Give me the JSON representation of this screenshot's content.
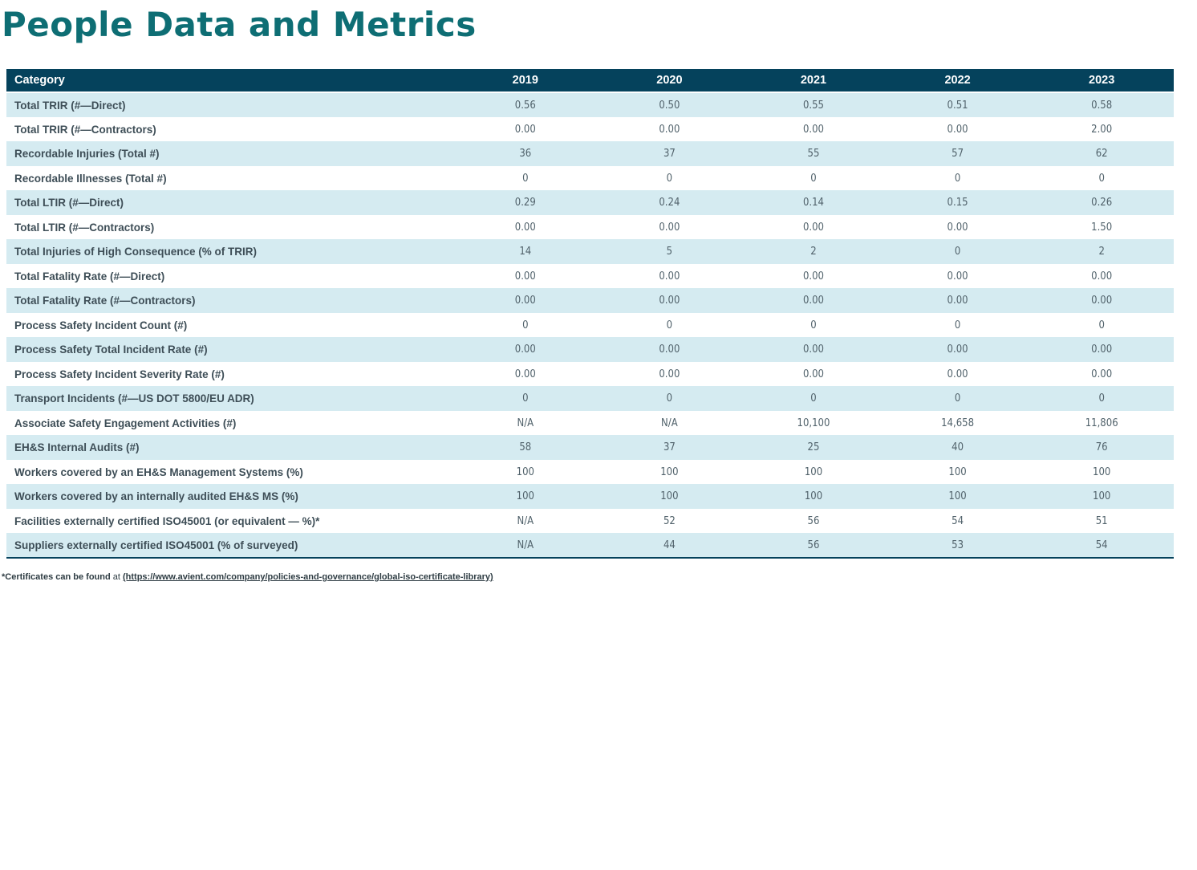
{
  "page": {
    "title": "People Data and Metrics"
  },
  "colors": {
    "header_bg": "#05425C",
    "row_alt_bg": "#D5EBF1",
    "title": "#0E6E74"
  },
  "table": {
    "header": {
      "category": "Category",
      "years": [
        "2019",
        "2020",
        "2021",
        "2022",
        "2023"
      ]
    },
    "rows": [
      {
        "label": "Total TRIR (#—Direct)",
        "values": [
          "0.56",
          "0.50",
          "0.55",
          "0.51",
          "0.58"
        ]
      },
      {
        "label": "Total TRIR (#—Contractors)",
        "values": [
          "0.00",
          "0.00",
          "0.00",
          "0.00",
          "2.00"
        ]
      },
      {
        "label": "Recordable Injuries (Total #)",
        "values": [
          "36",
          "37",
          "55",
          "57",
          "62"
        ]
      },
      {
        "label": "Recordable Illnesses (Total #)",
        "values": [
          "0",
          "0",
          "0",
          "0",
          "0"
        ]
      },
      {
        "label": "Total LTIR (#—Direct)",
        "values": [
          "0.29",
          "0.24",
          "0.14",
          "0.15",
          "0.26"
        ]
      },
      {
        "label": "Total LTIR (#—Contractors)",
        "values": [
          "0.00",
          "0.00",
          "0.00",
          "0.00",
          "1.50"
        ]
      },
      {
        "label": "Total Injuries of High Consequence (% of TRIR)",
        "values": [
          "14",
          "5",
          "2",
          "0",
          "2"
        ]
      },
      {
        "label": "Total Fatality Rate (#—Direct)",
        "values": [
          "0.00",
          "0.00",
          "0.00",
          "0.00",
          "0.00"
        ]
      },
      {
        "label": "Total Fatality Rate (#—Contractors)",
        "values": [
          "0.00",
          "0.00",
          "0.00",
          "0.00",
          "0.00"
        ]
      },
      {
        "label": "Process Safety Incident Count (#)",
        "values": [
          "0",
          "0",
          "0",
          "0",
          "0"
        ]
      },
      {
        "label": "Process Safety Total Incident Rate (#)",
        "values": [
          "0.00",
          "0.00",
          "0.00",
          "0.00",
          "0.00"
        ]
      },
      {
        "label": "Process Safety Incident Severity Rate (#)",
        "values": [
          "0.00",
          "0.00",
          "0.00",
          "0.00",
          "0.00"
        ]
      },
      {
        "label": "Transport Incidents (#—US DOT 5800/EU ADR)",
        "values": [
          "0",
          "0",
          "0",
          "0",
          "0"
        ]
      },
      {
        "label": "Associate Safety Engagement Activities (#)",
        "values": [
          "N/A",
          "N/A",
          "10,100",
          "14,658",
          "11,806"
        ]
      },
      {
        "label": "EH&S Internal Audits (#)",
        "values": [
          "58",
          "37",
          "25",
          "40",
          "76"
        ]
      },
      {
        "label": "Workers covered by an EH&S Management Systems (%)",
        "values": [
          "100",
          "100",
          "100",
          "100",
          "100"
        ]
      },
      {
        "label": "Workers covered by an internally audited EH&S MS (%)",
        "values": [
          "100",
          "100",
          "100",
          "100",
          "100"
        ]
      },
      {
        "label": "Facilities externally certified ISO45001 (or equivalent — %)*",
        "values": [
          "N/A",
          "52",
          "56",
          "54",
          "51"
        ]
      },
      {
        "label": "Suppliers externally certified ISO45001 (% of surveyed)",
        "values": [
          "N/A",
          "44",
          "56",
          "53",
          "54"
        ]
      }
    ]
  },
  "footnote": {
    "bold": "*Certificates can be found",
    "middle": " at ",
    "link": "(https://www.avient.com/company/policies-and-governance/global-iso-certificate-library)"
  }
}
